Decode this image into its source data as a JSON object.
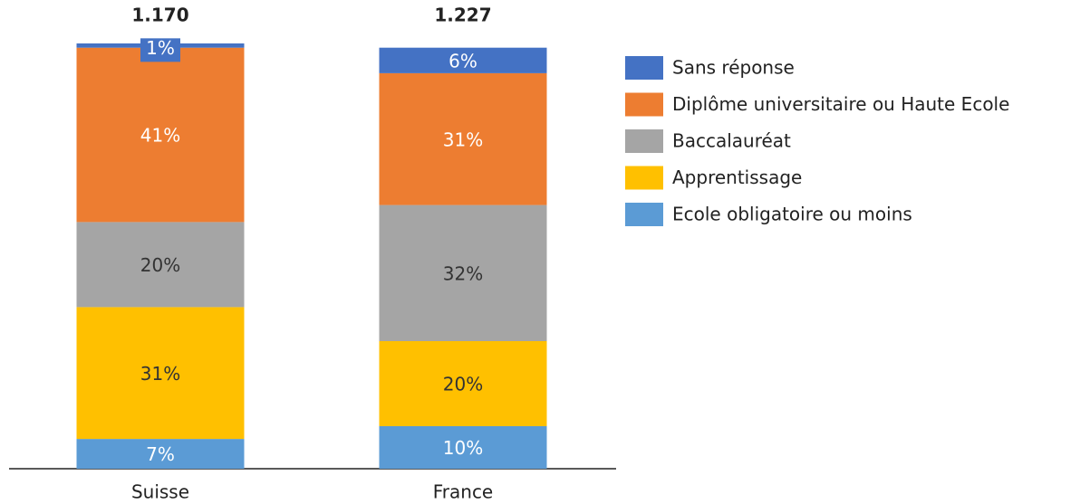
{
  "chart_data": {
    "type": "bar",
    "stacked": true,
    "categories": [
      "Suisse",
      "France"
    ],
    "annotations": [
      "1.170",
      "1.227"
    ],
    "series": [
      {
        "name": "Ecole obligatoire ou moins",
        "color": "#5b9bd5",
        "values": [
          7,
          10
        ],
        "value_labels": [
          "7%",
          "10%"
        ]
      },
      {
        "name": "Apprentissage",
        "color": "#ffc000",
        "values": [
          31,
          20
        ],
        "value_labels": [
          "31%",
          "20%"
        ]
      },
      {
        "name": "Baccalauréat",
        "color": "#a5a5a5",
        "values": [
          20,
          32
        ],
        "value_labels": [
          "20%",
          "32%"
        ]
      },
      {
        "name": "Diplôme universitaire ou Haute Ecole",
        "color": "#ed7d31",
        "values": [
          41,
          31
        ],
        "value_labels": [
          "41%",
          "31%"
        ]
      },
      {
        "name": "Sans réponse",
        "color": "#4472c4",
        "values": [
          1,
          6
        ],
        "value_labels": [
          "1%",
          "6%"
        ]
      }
    ]
  }
}
